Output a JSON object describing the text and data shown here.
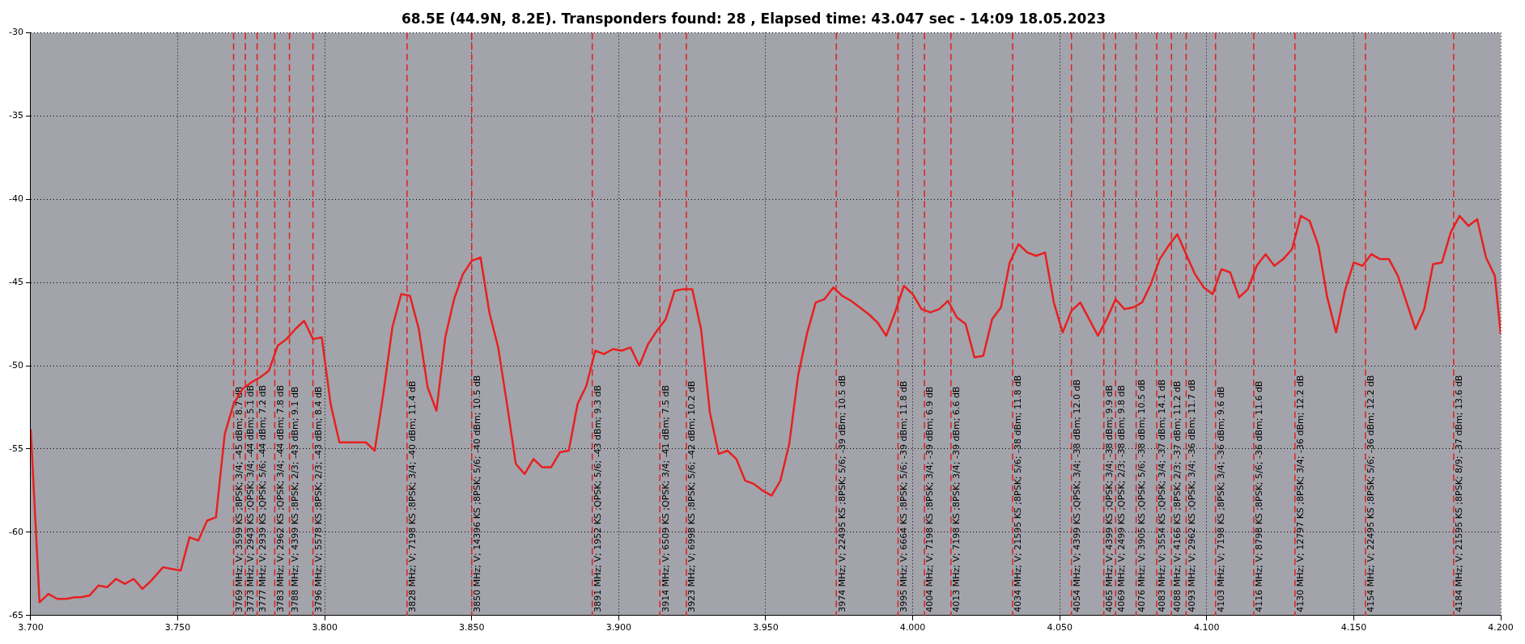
{
  "chart_data": {
    "type": "line",
    "title": "68.5E (44.9N, 8.2E). Transponders found: 28 , Elapsed time: 43.047 sec - 14:09 18.05.2023",
    "x": [
      3.7,
      3.703,
      3.706,
      3.709,
      3.712,
      3.715,
      3.717,
      3.72,
      3.723,
      3.726,
      3.729,
      3.732,
      3.735,
      3.738,
      3.741,
      3.745,
      3.748,
      3.751,
      3.754,
      3.757,
      3.76,
      3.763,
      3.766,
      3.769,
      3.772,
      3.775,
      3.778,
      3.781,
      3.784,
      3.787,
      3.79,
      3.793,
      3.796,
      3.799,
      3.802,
      3.805,
      3.808,
      3.811,
      3.814,
      3.817,
      3.82,
      3.823,
      3.826,
      3.829,
      3.832,
      3.835,
      3.838,
      3.841,
      3.844,
      3.847,
      3.85,
      3.853,
      3.856,
      3.859,
      3.862,
      3.865,
      3.868,
      3.871,
      3.874,
      3.877,
      3.88,
      3.883,
      3.886,
      3.889,
      3.892,
      3.895,
      3.898,
      3.901,
      3.904,
      3.907,
      3.91,
      3.913,
      3.916,
      3.919,
      3.922,
      3.925,
      3.928,
      3.931,
      3.934,
      3.937,
      3.94,
      3.943,
      3.946,
      3.949,
      3.952,
      3.955,
      3.958,
      3.961,
      3.964,
      3.967,
      3.97,
      3.973,
      3.976,
      3.979,
      3.982,
      3.985,
      3.988,
      3.991,
      3.994,
      3.997,
      4.0,
      4.003,
      4.006,
      4.009,
      4.012,
      4.015,
      4.018,
      4.021,
      4.024,
      4.027,
      4.03,
      4.033,
      4.036,
      4.039,
      4.042,
      4.045,
      4.048,
      4.051,
      4.054,
      4.057,
      4.06,
      4.063,
      4.066,
      4.069,
      4.072,
      4.075,
      4.078,
      4.081,
      4.084,
      4.087,
      4.09,
      4.093,
      4.096,
      4.099,
      4.102,
      4.105,
      4.108,
      4.111,
      4.114,
      4.117,
      4.12,
      4.123,
      4.126,
      4.129,
      4.132,
      4.135,
      4.138,
      4.141,
      4.144,
      4.147,
      4.15,
      4.153,
      4.156,
      4.159,
      4.162,
      4.165,
      4.168,
      4.171,
      4.174,
      4.177,
      4.18,
      4.183,
      4.186,
      4.189,
      4.192,
      4.195,
      4.198,
      4.2
    ],
    "series": [
      {
        "color": "#e82020",
        "values": [
          -53.8,
          -64.2,
          -63.7,
          -64.0,
          -64.0,
          -63.9,
          -63.9,
          -63.8,
          -63.2,
          -63.3,
          -62.8,
          -63.1,
          -62.8,
          -63.4,
          -62.9,
          -62.1,
          -62.2,
          -62.3,
          -60.3,
          -60.5,
          -59.3,
          -59.1,
          -54.1,
          -52.3,
          -51.4,
          -51.0,
          -50.7,
          -50.3,
          -48.8,
          -48.4,
          -47.8,
          -47.3,
          -48.4,
          -48.3,
          -52.3,
          -54.6,
          -54.6,
          -54.6,
          -54.6,
          -55.1,
          -51.6,
          -47.7,
          -45.7,
          -45.8,
          -47.8,
          -51.3,
          -52.7,
          -48.3,
          -46.0,
          -44.5,
          -43.7,
          -43.5,
          -46.8,
          -48.9,
          -52.3,
          -55.9,
          -56.5,
          -55.6,
          -56.1,
          -56.1,
          -55.2,
          -55.1,
          -52.3,
          -51.2,
          -49.1,
          -49.3,
          -49.0,
          -49.1,
          -48.9,
          -50.0,
          -48.7,
          -47.9,
          -47.2,
          -45.5,
          -45.4,
          -45.4,
          -47.8,
          -52.8,
          -55.3,
          -55.1,
          -55.6,
          -56.9,
          -57.1,
          -57.5,
          -57.8,
          -56.9,
          -54.7,
          -50.6,
          -48.1,
          -46.2,
          -46.0,
          -45.3,
          -45.8,
          -46.1,
          -46.5,
          -46.9,
          -47.4,
          -48.2,
          -46.8,
          -45.2,
          -45.7,
          -46.6,
          -46.8,
          -46.6,
          -46.1,
          -47.1,
          -47.5,
          -49.5,
          -49.4,
          -47.2,
          -46.5,
          -43.8,
          -42.7,
          -43.2,
          -43.4,
          -43.2,
          -46.2,
          -48.0,
          -46.7,
          -46.2,
          -47.2,
          -48.2,
          -47.2,
          -46.0,
          -46.6,
          -46.5,
          -46.2,
          -45.1,
          -43.6,
          -42.8,
          -42.1,
          -43.3,
          -44.5,
          -45.3,
          -45.7,
          -44.2,
          -44.4,
          -45.9,
          -45.4,
          -44.0,
          -43.3,
          -44.0,
          -43.6,
          -43.0,
          -41.0,
          -41.3,
          -42.8,
          -45.9,
          -48.0,
          -45.5,
          -43.8,
          -44.0,
          -43.3,
          -43.6,
          -43.6,
          -44.6,
          -46.2,
          -47.8,
          -46.6,
          -43.9,
          -43.8,
          -42.0,
          -41.0,
          -41.6,
          -41.2,
          -43.5,
          -44.6,
          -48.1
        ]
      }
    ],
    "xlim": [
      3.7,
      4.2
    ],
    "xticks": [
      {
        "value": 3.7,
        "label": "3.700"
      },
      {
        "value": 3.75,
        "label": "3.750"
      },
      {
        "value": 3.8,
        "label": "3.800"
      },
      {
        "value": 3.85,
        "label": "3.850"
      },
      {
        "value": 3.9,
        "label": "3.900"
      },
      {
        "value": 3.95,
        "label": "3.950"
      },
      {
        "value": 4.0,
        "label": "4.000"
      },
      {
        "value": 4.05,
        "label": "4.050"
      },
      {
        "value": 4.1,
        "label": "4.100"
      },
      {
        "value": 4.15,
        "label": "4.150"
      },
      {
        "value": 4.2,
        "label": "4.200"
      }
    ],
    "ylim": [
      -65,
      -30
    ],
    "yticks": [
      -65,
      -60,
      -55,
      -50,
      -45,
      -40,
      -35,
      -30
    ],
    "grid": true,
    "legend": false,
    "marker": "none",
    "line_style": "solid",
    "ref_lines": [
      {
        "axis": "x",
        "value": 3.769,
        "label": "3769 MHz; V; 3599 KS ;8PSK; 3/4; -45 dBm; 8.7 dB",
        "color": "#e02020",
        "line_style": "dashed"
      },
      {
        "axis": "x",
        "value": 3.773,
        "label": "3773 MHz; V; 2943 KS ;QPSK; 3/4; -44 dBm; 5.1 dB",
        "color": "#e02020",
        "line_style": "dashed"
      },
      {
        "axis": "x",
        "value": 3.777,
        "label": "3777 MHz; V; 2939 KS ;QPSK; 5/6; -44 dBm; 7.2 dB",
        "color": "#e02020",
        "line_style": "dashed"
      },
      {
        "axis": "x",
        "value": 3.783,
        "label": "3783 MHz; V; 2962 KS ;QPSK; 3/4; -44 dBm; 7.8 dB",
        "color": "#e02020",
        "line_style": "dashed"
      },
      {
        "axis": "x",
        "value": 3.788,
        "label": "3788 MHz; V; 4399 KS ;8PSK; 2/3; -43 dBm; 9.1 dB",
        "color": "#e02020",
        "line_style": "dashed"
      },
      {
        "axis": "x",
        "value": 3.796,
        "label": "3796 MHz; V; 5578 KS ;8PSK; 2/3; -43 dBm; 8.4 dB",
        "color": "#e02020",
        "line_style": "dashed"
      },
      {
        "axis": "x",
        "value": 3.828,
        "label": "3828 MHz; V; 7198 KS ;8PSK; 3/4; -40 dBm; 11.4 dB",
        "color": "#e02020",
        "line_style": "dashed"
      },
      {
        "axis": "x",
        "value": 3.85,
        "label": "3850 MHz; V; 14396 KS ;8PSK; 5/6; -40 dBm; 10.5 dB",
        "color": "#e02020",
        "line_style": "dashed"
      },
      {
        "axis": "x",
        "value": 3.891,
        "label": "3891 MHz; V; 1952 KS ;QPSK; 5/6; -43 dBm; 9.3 dB",
        "color": "#e02020",
        "line_style": "dashed"
      },
      {
        "axis": "x",
        "value": 3.914,
        "label": "3914 MHz; V; 6509 KS ;QPSK; 3/4; -41 dBm; 7.5 dB",
        "color": "#e02020",
        "line_style": "dashed"
      },
      {
        "axis": "x",
        "value": 3.923,
        "label": "3923 MHz; V; 6998 KS ;8PSK; 5/6; -42 dBm; 10.2 dB",
        "color": "#e02020",
        "line_style": "dashed"
      },
      {
        "axis": "x",
        "value": 3.974,
        "label": "3974 MHz; V; 22495 KS ;8PSK; 5/6; -39 dBm; 10.5 dB",
        "color": "#e02020",
        "line_style": "dashed"
      },
      {
        "axis": "x",
        "value": 3.995,
        "label": "3995 MHz; V; 6664 KS ;8PSK; 5/6; -39 dBm; 11.8 dB",
        "color": "#e02020",
        "line_style": "dashed"
      },
      {
        "axis": "x",
        "value": 4.004,
        "label": "4004 MHz; V; 7198 KS ;8PSK; 3/4; -39 dBm; 6.9 dB",
        "color": "#e02020",
        "line_style": "dashed"
      },
      {
        "axis": "x",
        "value": 4.013,
        "label": "4013 MHz; V; 7198 KS ;8PSK; 3/4; -39 dBm; 6.6 dB",
        "color": "#e02020",
        "line_style": "dashed"
      },
      {
        "axis": "x",
        "value": 4.034,
        "label": "4034 MHz; V; 21595 KS ;8PSK; 5/6; -38 dBm; 11.8 dB",
        "color": "#e02020",
        "line_style": "dashed"
      },
      {
        "axis": "x",
        "value": 4.054,
        "label": "4054 MHz; V; 4399 KS ;QPSK; 3/4; -38 dBm; 12.0 dB",
        "color": "#e02020",
        "line_style": "dashed"
      },
      {
        "axis": "x",
        "value": 4.065,
        "label": "4065 MHz; V; 4399 KS ;QPSK; 3/4; -38 dBm; 9.9 dB",
        "color": "#e02020",
        "line_style": "dashed"
      },
      {
        "axis": "x",
        "value": 4.069,
        "label": "4069 MHz; V; 2499 KS ;QPSK; 2/3; -38 dBm; 9.8 dB",
        "color": "#e02020",
        "line_style": "dashed"
      },
      {
        "axis": "x",
        "value": 4.076,
        "label": "4076 MHz; V; 3905 KS ;QPSK; 5/6; -38 dBm; 10.5 dB",
        "color": "#e02020",
        "line_style": "dashed"
      },
      {
        "axis": "x",
        "value": 4.083,
        "label": "4083 MHz; V; 3554 KS ;QPSK; 3/4; -37 dBm; 14.1 dB",
        "color": "#e02020",
        "line_style": "dashed"
      },
      {
        "axis": "x",
        "value": 4.088,
        "label": "4088 MHz; V; 4166 KS ;8PSK; 2/3; -37 dBm; 11.2 dB",
        "color": "#e02020",
        "line_style": "dashed"
      },
      {
        "axis": "x",
        "value": 4.093,
        "label": "4093 MHz; V; 2962 KS ;QPSK; 3/4; -36 dBm; 11.7 dB",
        "color": "#e02020",
        "line_style": "dashed"
      },
      {
        "axis": "x",
        "value": 4.103,
        "label": "4103 MHz; V; 7198 KS ;8PSK; 3/4; -36 dBm; 9.6 dB",
        "color": "#e02020",
        "line_style": "dashed"
      },
      {
        "axis": "x",
        "value": 4.116,
        "label": "4116 MHz; V; 8798 KS ;8PSK; 5/6; -36 dBm; 11.6 dB",
        "color": "#e02020",
        "line_style": "dashed"
      },
      {
        "axis": "x",
        "value": 4.13,
        "label": "4130 MHz; V; 12797 KS ;8PSK; 3/4; -36 dBm; 12.2 dB",
        "color": "#e02020",
        "line_style": "dashed"
      },
      {
        "axis": "x",
        "value": 4.154,
        "label": "4154 MHz; V; 22495 KS ;8PSK; 5/6; -36 dBm; 12.2 dB",
        "color": "#e02020",
        "line_style": "dashed"
      },
      {
        "axis": "x",
        "value": 4.184,
        "label": "4184 MHz; V; 21595 KS ;8PSK; 8/9; -37 dBm; 13.6 dB",
        "color": "#e02020",
        "line_style": "dashed"
      }
    ]
  }
}
